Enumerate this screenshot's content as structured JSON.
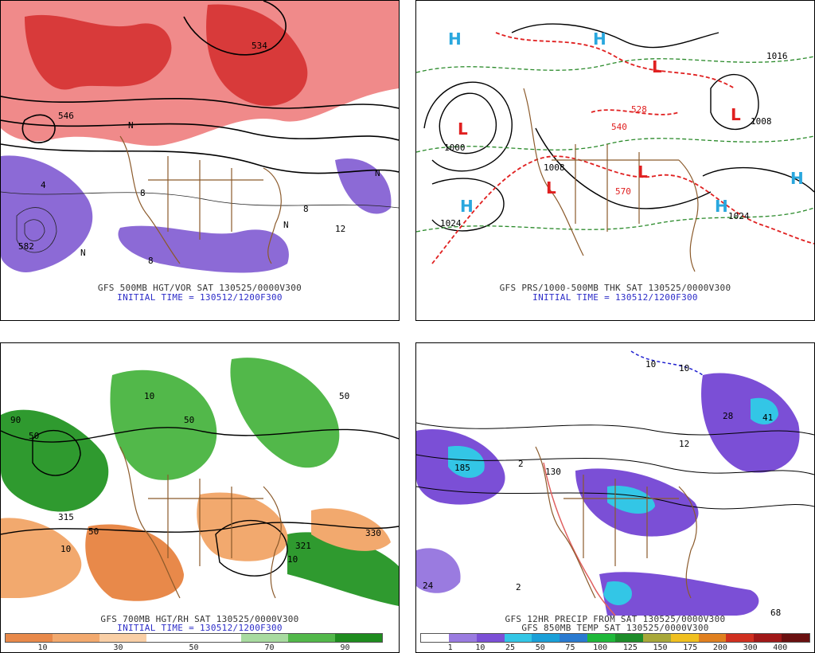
{
  "panels": [
    {
      "title": "GFS 500MB HGT/VOR SAT 130525/0000V300",
      "subtitle": "INITIAL TIME = 130512/1200F300",
      "labels": [
        "546",
        "534",
        "582",
        "N",
        "N",
        "N",
        "4",
        "8",
        "8",
        "12",
        "N",
        "8"
      ]
    },
    {
      "title": "GFS PRS/1000-500MB THK SAT 130525/0000V300",
      "subtitle": "INITIAL TIME = 130512/1200F300",
      "labels": [
        "H",
        "H",
        "H",
        "H",
        "H",
        "L",
        "L",
        "L",
        "L",
        "L",
        "1024",
        "1024",
        "1016",
        "1008",
        "1000",
        "1008",
        "540",
        "570",
        "528"
      ]
    },
    {
      "title": "GFS 700MB HGT/RH SAT 130525/0000V300",
      "subtitle": "INITIAL TIME = 130512/1200F300",
      "labels": [
        "50",
        "50",
        "50",
        "10",
        "10",
        "90",
        "315",
        "321",
        "330",
        "50",
        "10"
      ]
    },
    {
      "title": "GFS 12HR PRECIP FROM SAT 130525/0000V300",
      "subtitle": "GFS 850MB TEMP SAT 130525/0000V300",
      "labels": [
        "185",
        "130",
        "24",
        "2",
        "2",
        "41",
        "28",
        "12",
        "68",
        "10",
        "10"
      ]
    }
  ],
  "colorbar_rh": {
    "colors": [
      "#e8894a",
      "#f2a96e",
      "#f9cfa6",
      "#ffffff",
      "#ffffff",
      "#a8dba0",
      "#52b84a",
      "#1f8c1f"
    ],
    "ticks": [
      "10",
      "30",
      "50",
      "70",
      "90"
    ]
  },
  "colorbar_precip": {
    "colors": [
      "#ffffff",
      "#9a7be0",
      "#7b4fd6",
      "#33c6e6",
      "#1aa0d8",
      "#2a7ad0",
      "#1fb83a",
      "#1e8c2a",
      "#a8a83a",
      "#f0c020",
      "#e08020",
      "#d03020",
      "#a01818",
      "#6a1010"
    ],
    "ticks": [
      "1",
      "10",
      "25",
      "50",
      "75",
      "100",
      "125",
      "150",
      "175",
      "200",
      "300",
      "400"
    ]
  }
}
